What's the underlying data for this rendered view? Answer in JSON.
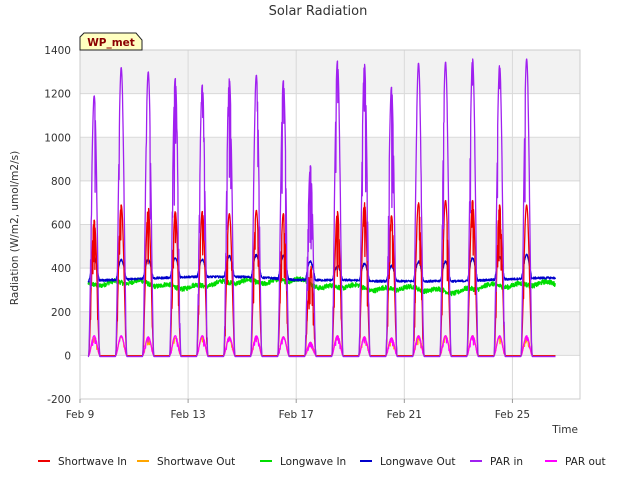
{
  "chart_data": {
    "type": "line",
    "title": "Solar Radiation",
    "xlabel": "Time",
    "ylabel": "Radiation (W/m2, umol/m2/s)",
    "station_label": "WP_met",
    "ylim": [
      -200,
      1400
    ],
    "yticks": [
      -200,
      0,
      200,
      400,
      600,
      800,
      1000,
      1200,
      1400
    ],
    "xlim_days": [
      0,
      18.5
    ],
    "xticks": [
      {
        "day": 0,
        "label": "Feb 9"
      },
      {
        "day": 4,
        "label": "Feb 13"
      },
      {
        "day": 8,
        "label": "Feb 17"
      },
      {
        "day": 12,
        "label": "Feb 21"
      },
      {
        "day": 16,
        "label": "Feb 25"
      }
    ],
    "grid": true,
    "legend_position": "bottom",
    "days": [
      "Feb 9",
      "Feb 10",
      "Feb 11",
      "Feb 12",
      "Feb 13",
      "Feb 14",
      "Feb 15",
      "Feb 16",
      "Feb 17",
      "Feb 18",
      "Feb 19",
      "Feb 20",
      "Feb 21",
      "Feb 22",
      "Feb 23",
      "Feb 24",
      "Feb 25",
      "Feb 26"
    ],
    "series": [
      {
        "name": "Shortwave In",
        "color": "#ee0000",
        "kind": "diurnal",
        "daily_peak": [
          620,
          690,
          680,
          660,
          660,
          650,
          665,
          650,
          420,
          660,
          700,
          640,
          700,
          710,
          710,
          690,
          690,
          0
        ],
        "night": -2
      },
      {
        "name": "Shortwave Out",
        "color": "#ffa500",
        "kind": "diurnal",
        "daily_peak": [
          80,
          85,
          80,
          80,
          85,
          80,
          85,
          85,
          60,
          90,
          85,
          80,
          90,
          90,
          90,
          85,
          85,
          0
        ],
        "night": -2
      },
      {
        "name": "Longwave In",
        "color": "#00dd00",
        "kind": "continuous",
        "daily_mean": [
          320,
          330,
          340,
          320,
          310,
          330,
          340,
          335,
          350,
          310,
          320,
          300,
          310,
          300,
          290,
          320,
          320,
          330
        ]
      },
      {
        "name": "Longwave Out",
        "color": "#0000cc",
        "kind": "continuous",
        "daily_mean": [
          340,
          345,
          350,
          355,
          360,
          360,
          360,
          355,
          345,
          345,
          345,
          340,
          340,
          340,
          340,
          345,
          350,
          355
        ],
        "daily_peak": [
          450,
          440,
          440,
          445,
          440,
          455,
          460,
          455,
          430,
          410,
          420,
          410,
          430,
          430,
          445,
          450,
          460,
          0
        ]
      },
      {
        "name": "PAR in",
        "color": "#a020f0",
        "kind": "diurnal",
        "daily_peak": [
          1190,
          1320,
          1300,
          1270,
          1240,
          1270,
          1285,
          1260,
          870,
          1350,
          1335,
          1230,
          1340,
          1345,
          1360,
          1330,
          1360,
          0
        ],
        "night": -5
      },
      {
        "name": "PAR out",
        "color": "#ff00ff",
        "kind": "diurnal",
        "daily_peak": [
          90,
          90,
          85,
          90,
          90,
          85,
          90,
          85,
          60,
          90,
          85,
          80,
          90,
          90,
          90,
          90,
          90,
          0
        ],
        "night": -5
      }
    ]
  }
}
